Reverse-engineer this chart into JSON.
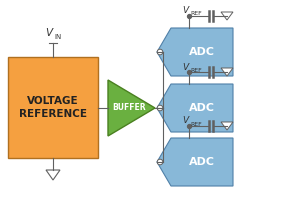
{
  "bg_color": "#ffffff",
  "vref_box_color": "#f5a040",
  "vref_box_edge": "#b07020",
  "buffer_color": "#6ab040",
  "buffer_edge": "#4a8020",
  "adc_color": "#88b8d8",
  "adc_edge": "#5080a8",
  "line_color": "#606060",
  "text_color": "#333333",
  "vref_label": "VOLTAGE\nREFERENCE",
  "buffer_label": "BUFFER",
  "adc_label": "ADC",
  "figw": 2.88,
  "figh": 2.18,
  "dpi": 100
}
